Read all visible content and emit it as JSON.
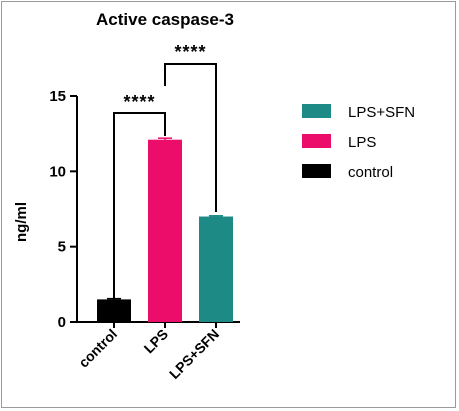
{
  "chart_data": {
    "type": "bar",
    "title": "Active caspase-3",
    "ylabel": "ng/ml",
    "xlabel": "",
    "ylim": [
      0,
      15
    ],
    "yticks": [
      0,
      5,
      10,
      15
    ],
    "categories": [
      "control",
      "LPS",
      "LPS+SFN"
    ],
    "values": [
      1.5,
      12.1,
      7.0
    ],
    "errors": [
      0.05,
      0.1,
      0.05
    ],
    "colors": [
      "#000000",
      "#ec0d6b",
      "#1d8a86"
    ],
    "legend": {
      "position": "right",
      "entries": [
        {
          "label": "LPS+SFN",
          "color": "#1d8a86"
        },
        {
          "label": "LPS",
          "color": "#ec0d6b"
        },
        {
          "label": "control",
          "color": "#000000"
        }
      ]
    },
    "annotations": [
      {
        "label": "****",
        "between": [
          "control",
          "LPS"
        ]
      },
      {
        "label": "****",
        "between": [
          "LPS",
          "LPS+SFN"
        ]
      }
    ],
    "grid": false
  }
}
